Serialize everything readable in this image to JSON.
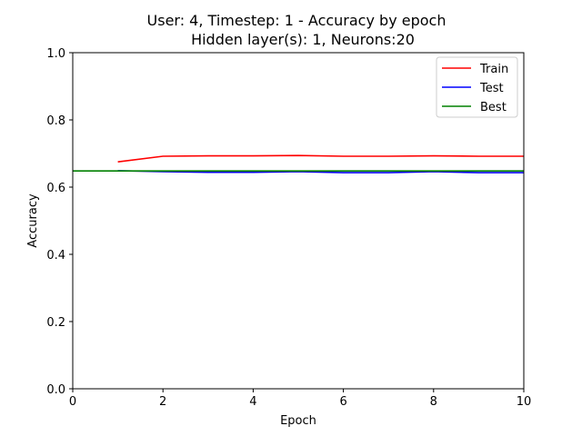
{
  "chart_data": {
    "type": "line",
    "title_line1": "User: 4, Timestep: 1 - Accuracy by epoch",
    "title_line2": "Hidden layer(s): 1, Neurons:20",
    "xlabel": "Epoch",
    "ylabel": "Accuracy",
    "xlim": [
      0,
      10
    ],
    "ylim": [
      0,
      1.0
    ],
    "xticks": [
      "0",
      "2",
      "4",
      "6",
      "8",
      "10"
    ],
    "yticks": [
      "0.0",
      "0.2",
      "0.4",
      "0.6",
      "0.8",
      "1.0"
    ],
    "legend_position": "top-right",
    "series": [
      {
        "name": "Train",
        "color": "#ff0000",
        "x": [
          1,
          2,
          3,
          4,
          5,
          6,
          7,
          8,
          9,
          10
        ],
        "values": [
          0.675,
          0.692,
          0.693,
          0.693,
          0.694,
          0.692,
          0.692,
          0.693,
          0.692,
          0.692
        ]
      },
      {
        "name": "Test",
        "color": "#0000ff",
        "x": [
          1,
          2,
          3,
          4,
          5,
          6,
          7,
          8,
          9,
          10
        ],
        "values": [
          0.649,
          0.646,
          0.644,
          0.644,
          0.646,
          0.643,
          0.643,
          0.646,
          0.643,
          0.643
        ]
      },
      {
        "name": "Best",
        "color": "#008000",
        "x": [
          0,
          1,
          2,
          3,
          4,
          5,
          6,
          7,
          8,
          9,
          10
        ],
        "values": [
          0.648,
          0.648,
          0.648,
          0.648,
          0.648,
          0.648,
          0.648,
          0.648,
          0.648,
          0.648,
          0.648
        ]
      }
    ]
  }
}
